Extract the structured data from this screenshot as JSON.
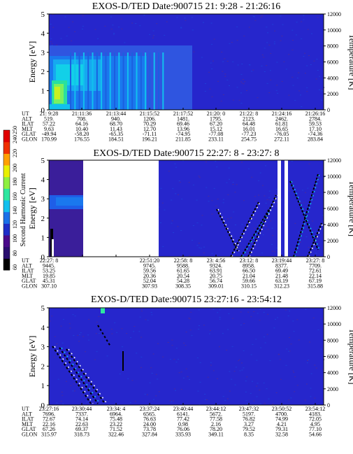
{
  "colors": {
    "background": "#2626cc",
    "colorbar": [
      "#000000",
      "#2a0e6e",
      "#4a0a8a",
      "#1e2ec8",
      "#1a70e8",
      "#12c0ee",
      "#2ee6a0",
      "#8ef040",
      "#e8f000",
      "#ffa000",
      "#f03000",
      "#e00000"
    ]
  },
  "chart_data": [
    {
      "type": "heatmap",
      "title": "EXOS-D/TED  Date:900715  21: 9:28 - 21:26:16",
      "ylabel": "Energy [eV]",
      "y2label": "Temperature [K]",
      "ylim": [
        0,
        5
      ],
      "y2lim": [
        0,
        12000
      ],
      "yticks": [
        "0",
        "1",
        "2",
        "3",
        "4",
        "5"
      ],
      "y2ticks": [
        "0",
        "2000",
        "4000",
        "6000",
        "8000",
        "10000",
        "12000"
      ],
      "row_labels": [
        "UT",
        "ALT",
        "ILAT",
        "MLT",
        "GLAT",
        "GLON"
      ],
      "columns": [
        {
          "UT": "21: 9:28",
          "ALT": "519.",
          "ILAT": "57.22",
          "MLT": "9.63",
          "GLAT": "-49.94",
          "GLON": "170.99"
        },
        {
          "UT": "21:11:36",
          "ALT": "708.",
          "ILAT": "64.16",
          "MLT": "10.40",
          "GLAT": "-58.20",
          "GLON": "176.55"
        },
        {
          "UT": "21:13:44",
          "ALT": "940.",
          "ILAT": "68.70",
          "MLT": "11.43",
          "GLAT": "-65.35",
          "GLON": "184.51"
        },
        {
          "UT": "21:15:52",
          "ALT": "1206.",
          "ILAT": "70.29",
          "MLT": "12.70",
          "GLAT": "-71.11",
          "GLON": "196.21"
        },
        {
          "UT": "21:17:52",
          "ALT": "1481.",
          "ILAT": "69.46",
          "MLT": "13.96",
          "GLAT": "-74.95",
          "GLON": "211.85"
        },
        {
          "UT": "21:20: 0",
          "ALT": "1795.",
          "ILAT": "67.20",
          "MLT": "15.12",
          "GLAT": "-77.08",
          "GLON": "233.11"
        },
        {
          "UT": "21:22: 8",
          "ALT": "2123.",
          "ILAT": "64.48",
          "MLT": "16.01",
          "GLAT": "-77.23",
          "GLON": "254.75"
        },
        {
          "UT": "21:24:16",
          "ALT": "2462.",
          "ILAT": "61.81",
          "MLT": "16.65",
          "GLAT": "-76.05",
          "GLON": "272.11"
        },
        {
          "UT": "21:26:16",
          "ALT": "2784.",
          "ILAT": "59.53",
          "MLT": "17.10",
          "GLAT": "-74.36",
          "GLON": "283.84"
        }
      ]
    },
    {
      "type": "heatmap",
      "title": "EXOS-D/TED   Date:900715  22:27: 8 - 23:27: 8",
      "ylabel": "Energy [eV]",
      "y2label": "Temperature [K]",
      "ylim": [
        0,
        5
      ],
      "y2lim": [
        0,
        12000
      ],
      "yticks": [
        "0",
        "1",
        "2",
        "3",
        "4",
        "5"
      ],
      "y2ticks": [
        "0",
        "2000",
        "4000",
        "6000",
        "8000",
        "10000",
        "12000"
      ],
      "row_labels": [
        "UT",
        "ALT",
        "ILAT",
        "MLT",
        "GLAT",
        "GLON"
      ],
      "columns": [
        {
          "UT": "22:27: 8",
          "ALT": "9445.",
          "ILAT": "53.25",
          "MLT": "19.85",
          "GLAT": "45.31",
          "GLON": "307.10"
        },
        {
          "UT": "",
          "ALT": "",
          "ILAT": "",
          "MLT": "",
          "GLAT": "",
          "GLON": ""
        },
        {
          "UT": "",
          "ALT": "",
          "ILAT": "",
          "MLT": "",
          "GLAT": "",
          "GLON": ""
        },
        {
          "UT": "22:51:20",
          "ALT": "9745.",
          "ILAT": "59.56",
          "MLT": "20.36",
          "GLAT": "52.04",
          "GLON": "307.93"
        },
        {
          "UT": "22:58: 8",
          "ALT": "9588.",
          "ILAT": "61.65",
          "MLT": "20.54",
          "GLAT": "54.28",
          "GLON": "308.35"
        },
        {
          "UT": "23: 4:56",
          "ALT": "9324.",
          "ILAT": "63.91",
          "MLT": "20.75",
          "GLAT": "56.74",
          "GLON": "309.01"
        },
        {
          "UT": "23:12: 8",
          "ALT": "8958.",
          "ILAT": "66.50",
          "MLT": "21.04",
          "GLAT": "59.66",
          "GLON": "310.15"
        },
        {
          "UT": "23:19:44",
          "ALT": "8377.",
          "ILAT": "69.49",
          "MLT": "21.48",
          "GLAT": "63.19",
          "GLON": "312.23"
        },
        {
          "UT": "23:27: 8",
          "ALT": "7709.",
          "ILAT": "72.61",
          "MLT": "22.14",
          "GLAT": "67.19",
          "GLON": "315.88"
        }
      ]
    },
    {
      "type": "heatmap",
      "title": "EXOS-D/TED   Date:900715  23:27:16 - 23:54:12",
      "ylabel": "Energy [eV]",
      "y2label": "Temperature [K]",
      "ylim": [
        0,
        5
      ],
      "y2lim": [
        0,
        12000
      ],
      "yticks": [
        "0",
        "1",
        "2",
        "3",
        "4",
        "5"
      ],
      "y2ticks": [
        "0",
        "2000",
        "4000",
        "6000",
        "8000",
        "10000",
        "12000"
      ],
      "row_labels": [
        "UT",
        "ALT",
        "ILAT",
        "MLT",
        "GLAT",
        "GLON"
      ],
      "columns": [
        {
          "UT": "23:27:16",
          "ALT": "7696.",
          "ILAT": "72.67",
          "MLT": "22.16",
          "GLAT": "67.26",
          "GLON": "315.97"
        },
        {
          "UT": "23:30:44",
          "ALT": "7337.",
          "ILAT": "74.14",
          "MLT": "22.63",
          "GLAT": "69.37",
          "GLON": "318.73"
        },
        {
          "UT": "23:34: 4",
          "ALT": "6964.",
          "ILAT": "75.48",
          "MLT": "23.22",
          "GLAT": "71.52",
          "GLON": "322.46"
        },
        {
          "UT": "23:37:24",
          "ALT": "6565.",
          "ILAT": "76.63",
          "MLT": "24.00",
          "GLAT": "73.78",
          "GLON": "327.84"
        },
        {
          "UT": "23:40:44",
          "ALT": "6141.",
          "ILAT": "77.42",
          "MLT": "0.98",
          "GLAT": "76.06",
          "GLON": "335.93"
        },
        {
          "UT": "23:44:12",
          "ALT": "5672.",
          "ILAT": "77.58",
          "MLT": "2.16",
          "GLAT": "78.20",
          "GLON": "349.11"
        },
        {
          "UT": "23:47:32",
          "ALT": "5197.",
          "ILAT": "76.82",
          "MLT": "3.27",
          "GLAT": "79.52",
          "GLON": "8.35"
        },
        {
          "UT": "23:50:52",
          "ALT": "4700.",
          "ILAT": "74.99",
          "MLT": "4.21",
          "GLAT": "79.31",
          "GLON": "32.58"
        },
        {
          "UT": "23:54:12",
          "ALT": "4183.",
          "ILAT": "72.05",
          "MLT": "4.95",
          "GLAT": "77.10",
          "GLON": "54.66"
        }
      ]
    }
  ],
  "colorbar": {
    "label": "Second Harmonic Current",
    "ticks": [
      "60",
      "80",
      "100",
      "120",
      "140",
      "160",
      "180",
      "200",
      "220",
      "240",
      "250"
    ]
  }
}
